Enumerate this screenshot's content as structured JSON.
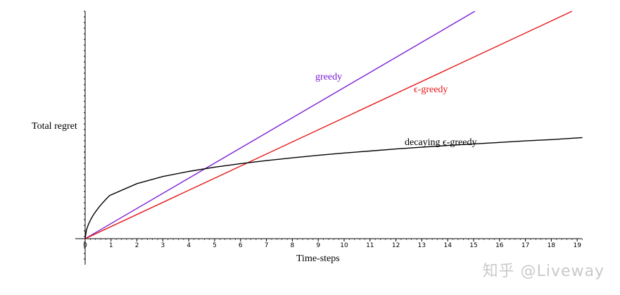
{
  "chart_data": {
    "type": "line",
    "xlabel": "Time-steps",
    "ylabel": "Total regret",
    "xlim": [
      0,
      19.3
    ],
    "ylim": [
      0,
      9
    ],
    "x_ticks": [
      "0",
      "1",
      "2",
      "3",
      "4",
      "5",
      "6",
      "7",
      "8",
      "9",
      "10",
      "11",
      "12",
      "13",
      "14",
      "15",
      "16",
      "17",
      "18",
      "19"
    ],
    "grid": false,
    "series": [
      {
        "name": "greedy",
        "color": "#7a1fd6",
        "x": [
          0,
          15.05
        ],
        "y": [
          0,
          9
        ]
      },
      {
        "name": "ϵ-greedy",
        "color": "#e61717",
        "x": [
          0,
          18.8
        ],
        "y": [
          0,
          9
        ]
      },
      {
        "name": "decaying ϵ-greedy",
        "color": "#000000",
        "x": [
          0,
          1,
          2,
          3,
          4,
          5,
          6,
          7,
          8,
          9,
          10,
          11,
          12,
          13,
          14,
          15,
          16,
          17,
          18,
          19.2
        ],
        "y": [
          0,
          1.76,
          2.18,
          2.46,
          2.66,
          2.83,
          2.97,
          3.09,
          3.2,
          3.3,
          3.39,
          3.47,
          3.55,
          3.62,
          3.69,
          3.75,
          3.81,
          3.87,
          3.92,
          4.0
        ]
      }
    ]
  },
  "watermark": "知乎 @Liveway"
}
